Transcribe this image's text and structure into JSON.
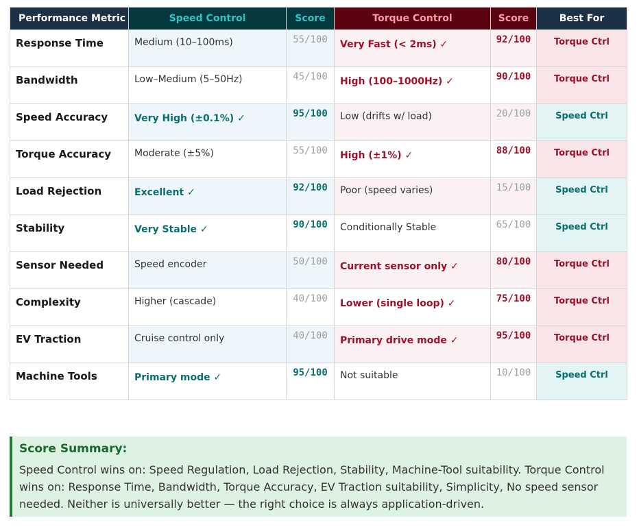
{
  "table": {
    "headers": {
      "metric": "Performance Metric",
      "speed": "Speed Control",
      "speed_score": "Score",
      "torque": "Torque Control",
      "torque_score": "Score",
      "best": "Best For"
    },
    "rows": [
      {
        "metric": "Response Time",
        "speed": "Medium (10–100ms)",
        "speed_score": "55/100",
        "torque": "Very Fast (< 2ms) ✓",
        "torque_score": "92/100",
        "best": "Torque Ctrl",
        "winner": "torque"
      },
      {
        "metric": "Bandwidth",
        "speed": "Low–Medium (5–50Hz)",
        "speed_score": "45/100",
        "torque": "High (100–1000Hz) ✓",
        "torque_score": "90/100",
        "best": "Torque Ctrl",
        "winner": "torque"
      },
      {
        "metric": "Speed Accuracy",
        "speed": "Very High (±0.1%) ✓",
        "speed_score": "95/100",
        "torque": "Low (drifts w/ load)",
        "torque_score": "20/100",
        "best": "Speed Ctrl",
        "winner": "speed"
      },
      {
        "metric": "Torque Accuracy",
        "speed": "Moderate (±5%)",
        "speed_score": "55/100",
        "torque": "High (±1%) ✓",
        "torque_score": "88/100",
        "best": "Torque Ctrl",
        "winner": "torque"
      },
      {
        "metric": "Load Rejection",
        "speed": "Excellent ✓",
        "speed_score": "92/100",
        "torque": "Poor (speed varies)",
        "torque_score": "15/100",
        "best": "Speed Ctrl",
        "winner": "speed"
      },
      {
        "metric": "Stability",
        "speed": "Very Stable ✓",
        "speed_score": "90/100",
        "torque": "Conditionally Stable",
        "torque_score": "65/100",
        "best": "Speed Ctrl",
        "winner": "speed"
      },
      {
        "metric": "Sensor Needed",
        "speed": "Speed encoder",
        "speed_score": "50/100",
        "torque": "Current sensor only ✓",
        "torque_score": "80/100",
        "best": "Torque Ctrl",
        "winner": "torque"
      },
      {
        "metric": "Complexity",
        "speed": "Higher (cascade)",
        "speed_score": "40/100",
        "torque": "Lower (single loop) ✓",
        "torque_score": "75/100",
        "best": "Torque Ctrl",
        "winner": "torque"
      },
      {
        "metric": "EV Traction",
        "speed": "Cruise control only",
        "speed_score": "40/100",
        "torque": "Primary drive mode ✓",
        "torque_score": "95/100",
        "best": "Torque Ctrl",
        "winner": "torque"
      },
      {
        "metric": "Machine Tools",
        "speed": "Primary mode ✓",
        "speed_score": "95/100",
        "torque": "Not suitable",
        "torque_score": "10/100",
        "best": "Speed Ctrl",
        "winner": "speed"
      }
    ]
  },
  "summary": {
    "title": "Score Summary:",
    "text": "Speed Control wins on: Speed Regulation, Load Rejection, Stability, Machine-Tool suitability. Torque Control wins on: Response Time, Bandwidth, Torque Accuracy, EV Traction suitability, Simplicity, No speed sensor needed. Neither is universally better — the right choice is always application-driven."
  },
  "colors": {
    "speed_accent": "#0a6e6e",
    "torque_accent": "#a0102a",
    "summary_bg": "#def2e3",
    "summary_border": "#1e7e34"
  }
}
